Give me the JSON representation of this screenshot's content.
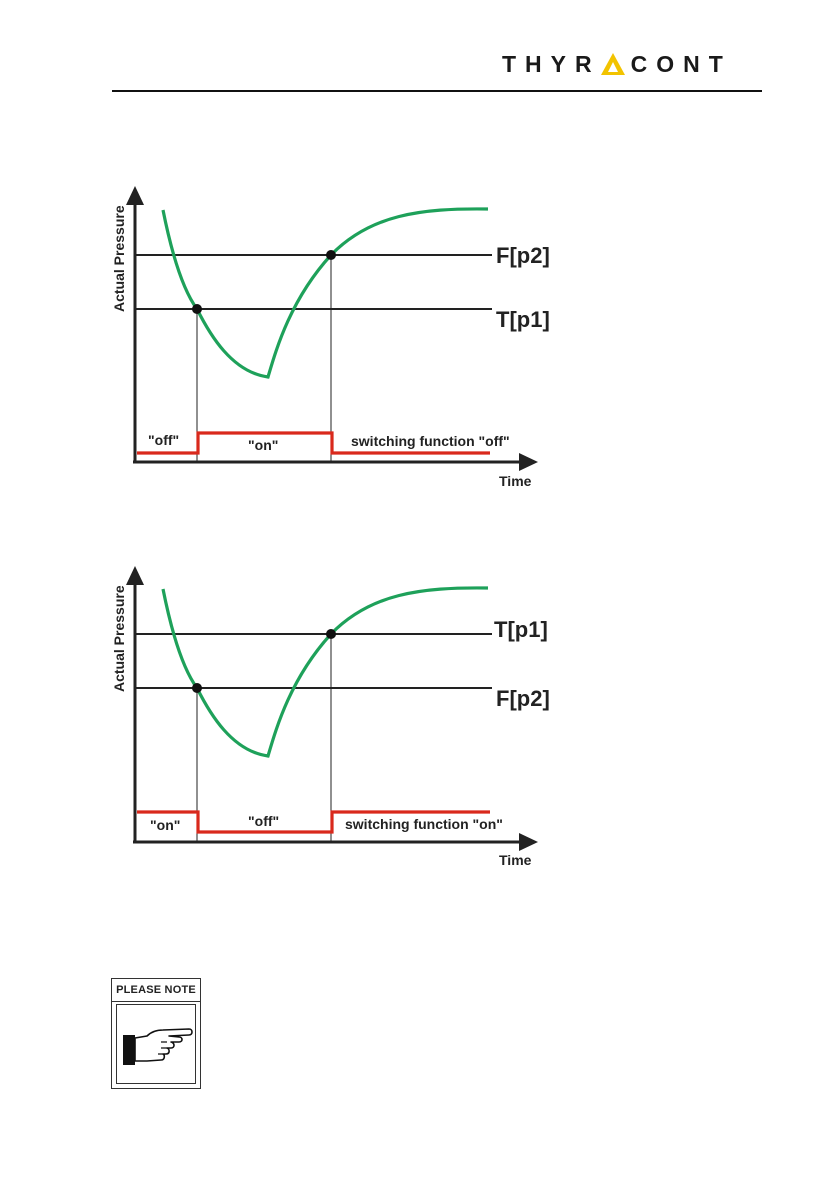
{
  "header": {
    "page_number": "",
    "logo_text_left": "THYR",
    "logo_text_right": "CONT",
    "logo_accent_color": "#f2c300"
  },
  "diagrams": [
    {
      "y_axis_label": "Actual Pressure",
      "x_axis_label": "Time",
      "upper_threshold_label": "F[p2]",
      "lower_threshold_label": "T[p1]",
      "state_left": "\"off\"",
      "state_middle": "\"on\"",
      "state_right": "switching function \"off\""
    },
    {
      "y_axis_label": "Actual Pressure",
      "x_axis_label": "Time",
      "upper_threshold_label": "T[p1]",
      "lower_threshold_label": "F[p2]",
      "state_left": "\"on\"",
      "state_middle": "\"off\"",
      "state_right": "switching function \"on\""
    }
  ],
  "colors": {
    "pressure_curve": "#1ea15a",
    "switching_signal": "#d9291c"
  },
  "note": {
    "title": "PLEASE NOTE",
    "icon": "pointing-hand-icon"
  }
}
